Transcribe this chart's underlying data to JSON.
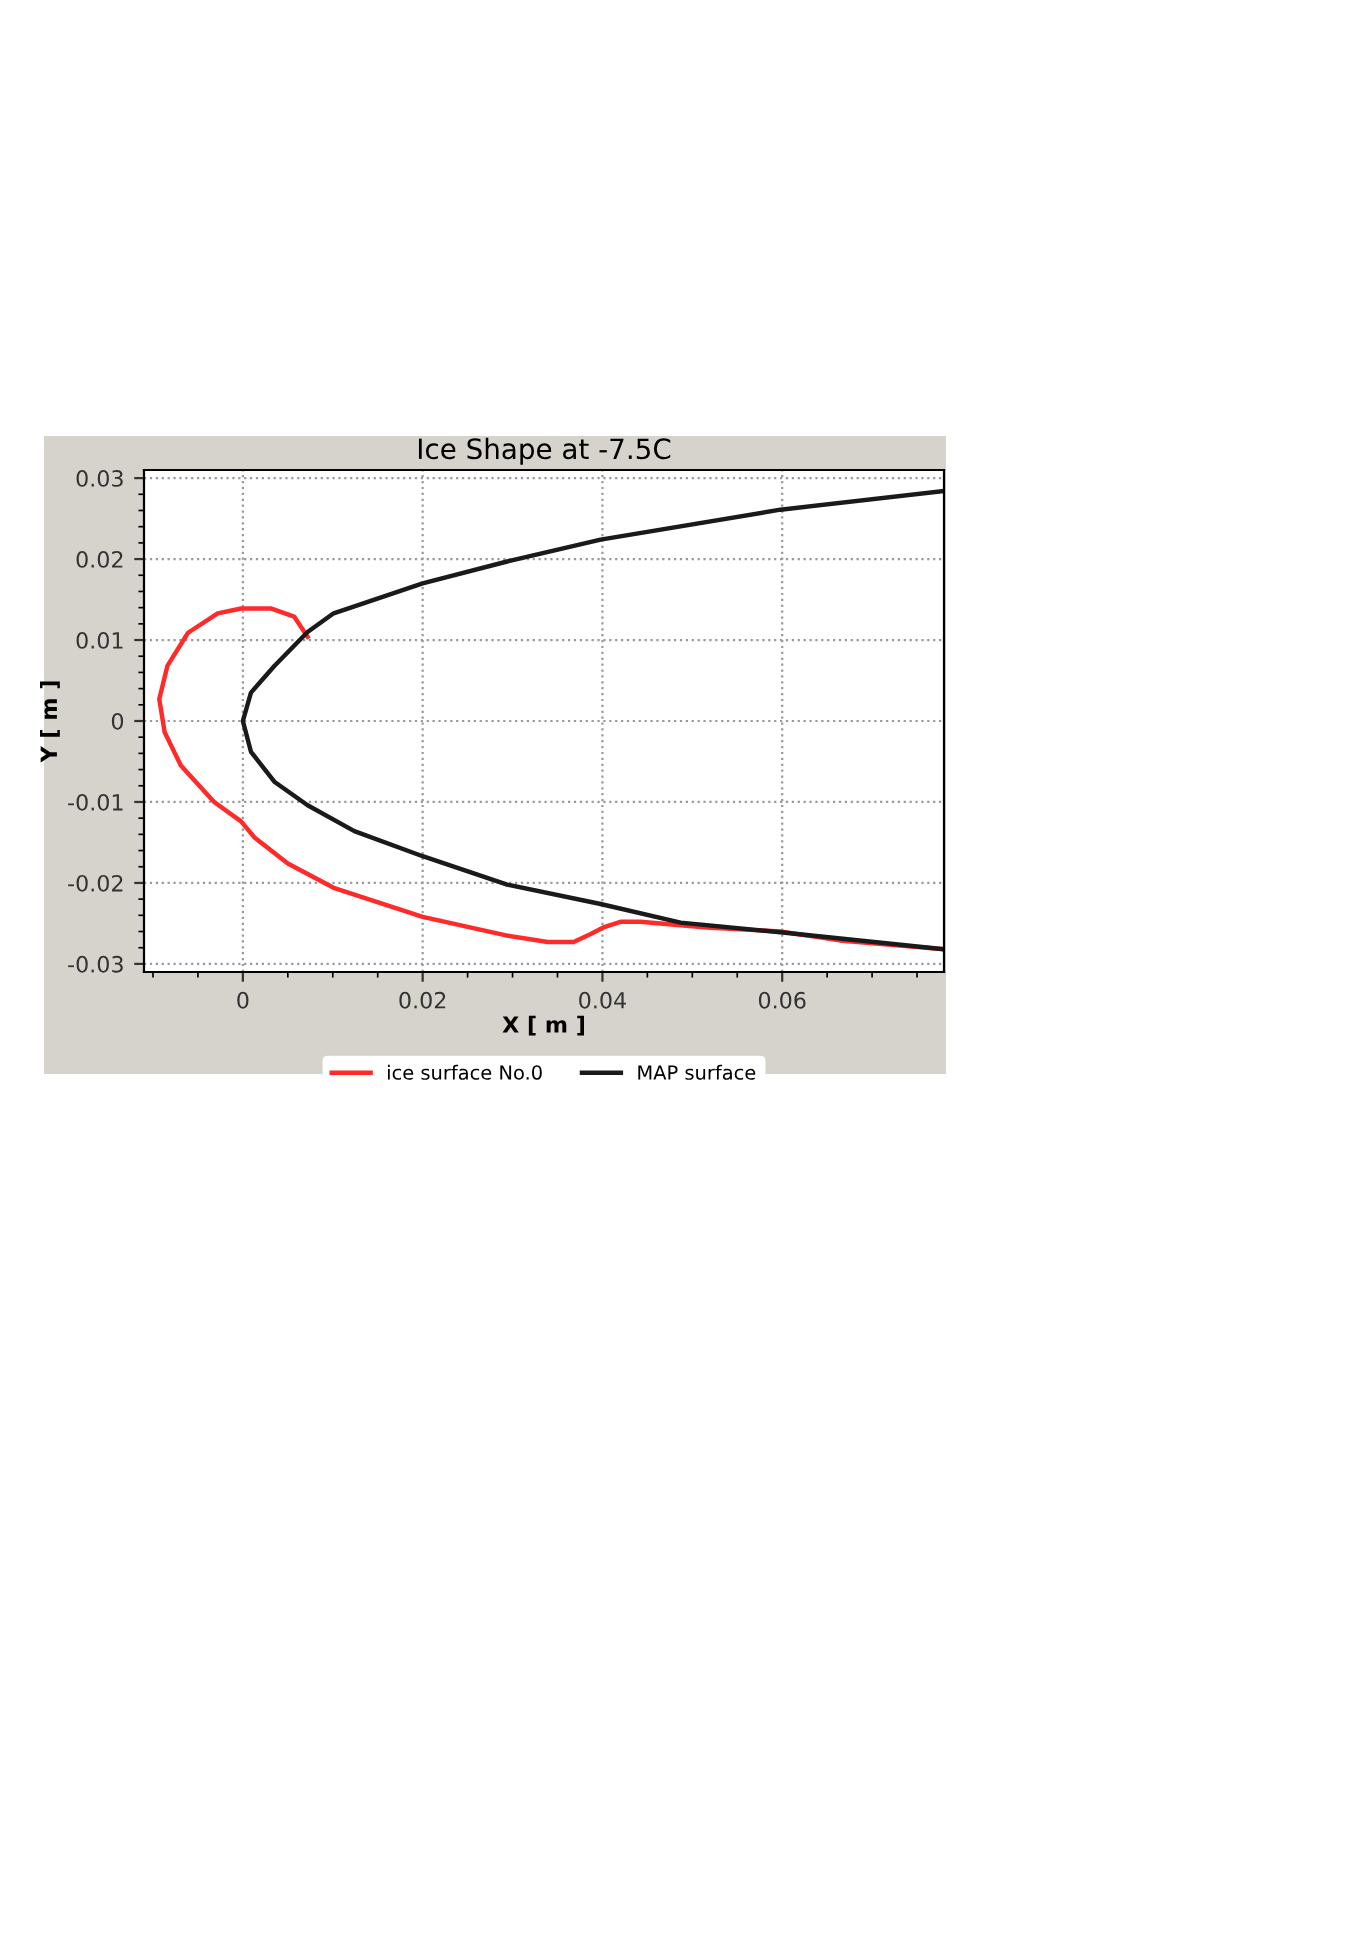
{
  "chart_data": {
    "type": "line",
    "title": "Ice Shape at -7.5C",
    "xlabel": "X [ m ]",
    "ylabel": "Y [ m ]",
    "xlim": [
      -0.011,
      0.078
    ],
    "ylim": [
      -0.031,
      0.031
    ],
    "xticks": [
      0,
      0.02,
      0.04,
      0.06
    ],
    "yticks": [
      -0.03,
      -0.02,
      -0.01,
      0,
      0.01,
      0.02,
      0.03
    ],
    "grid": true,
    "legend": "bottom",
    "line_style": "solid",
    "marker": "none",
    "series": [
      {
        "name": "ice surface No.0",
        "color": "#ff2a2a",
        "x": [
          0.0072,
          0.0057,
          0.0031,
          -0.0002,
          -0.0028,
          -0.0061,
          -0.0084,
          -0.0093,
          -0.0087,
          -0.0069,
          -0.0032,
          -0.0002,
          0.0013,
          0.005,
          0.0101,
          0.02,
          0.0294,
          0.0339,
          0.0368,
          0.0387,
          0.0401,
          0.042,
          0.0442,
          0.0516,
          0.0598,
          0.0664,
          0.078
        ],
        "values": [
          0.0104,
          0.0129,
          0.0139,
          0.0139,
          0.0133,
          0.0109,
          0.0068,
          0.0027,
          -0.0014,
          -0.0055,
          -0.01,
          -0.0124,
          -0.0144,
          -0.0176,
          -0.0206,
          -0.0242,
          -0.0265,
          -0.0273,
          -0.0273,
          -0.0263,
          -0.0255,
          -0.0248,
          -0.0248,
          -0.0255,
          -0.026,
          -0.0271,
          -0.0282
        ]
      },
      {
        "name": "MAP surface",
        "color": "#1a1a1a",
        "x": [
          0.078,
          0.0598,
          0.0398,
          0.0294,
          0.02,
          0.0101,
          0.0072,
          0.0035,
          0.0009,
          0,
          0.0009,
          0.0035,
          0.0072,
          0.0124,
          0.02,
          0.0294,
          0.0398,
          0.0487,
          0.0598,
          0.078
        ],
        "values": [
          0.0284,
          0.0261,
          0.0224,
          0.0197,
          0.017,
          0.0133,
          0.011,
          0.0068,
          0.0035,
          0,
          -0.0038,
          -0.0075,
          -0.0104,
          -0.0136,
          -0.0167,
          -0.0202,
          -0.0226,
          -0.0249,
          -0.0261,
          -0.0282
        ]
      }
    ]
  }
}
